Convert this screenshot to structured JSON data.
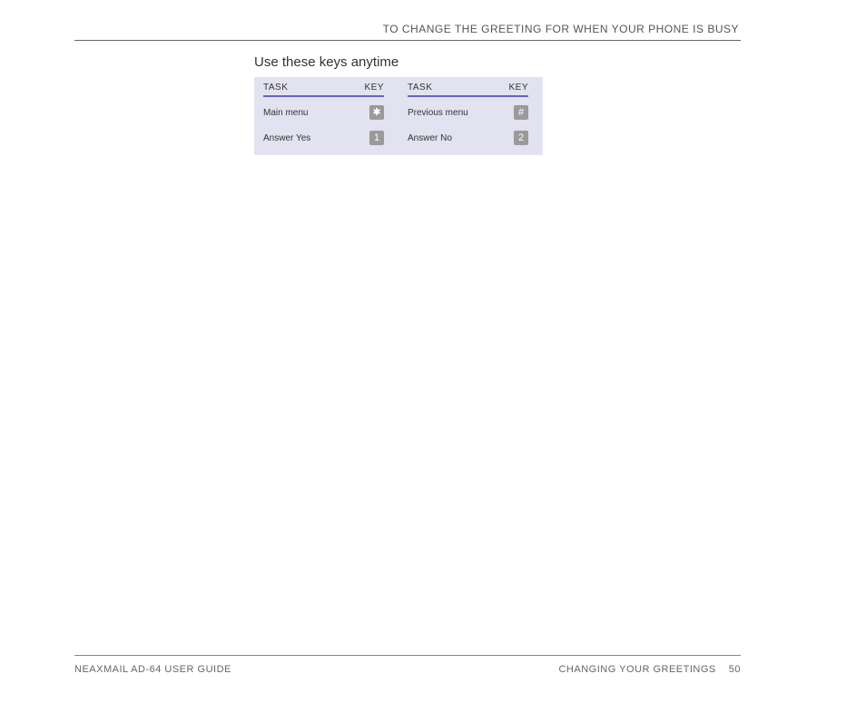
{
  "header": {
    "title": "TO CHANGE THE GREETING FOR WHEN YOUR PHONE IS BUSY"
  },
  "section": {
    "title": "Use these keys anytime"
  },
  "keys_table": {
    "columns": [
      {
        "task_header": "TASK",
        "key_header": "KEY",
        "rows": [
          {
            "task": "Main menu",
            "key": "✱"
          },
          {
            "task": "Answer Yes",
            "key": "1"
          }
        ]
      },
      {
        "task_header": "TASK",
        "key_header": "KEY",
        "rows": [
          {
            "task": "Previous menu",
            "key": "#"
          },
          {
            "task": "Answer No",
            "key": "2"
          }
        ]
      }
    ]
  },
  "footer": {
    "left": "NEAXMAIL AD-64 USER GUIDE",
    "right_section": "CHANGING YOUR GREETINGS",
    "page_number": "50"
  },
  "styling": {
    "page_bg": "#ffffff",
    "header_text_color": "#555555",
    "rule_color": "#666666",
    "table_bg": "#e2e2f0",
    "table_header_underline": "#6464c8",
    "key_badge_bg": "#9a9a9a",
    "key_badge_text": "#ffffff",
    "footer_text_color": "#666666"
  }
}
